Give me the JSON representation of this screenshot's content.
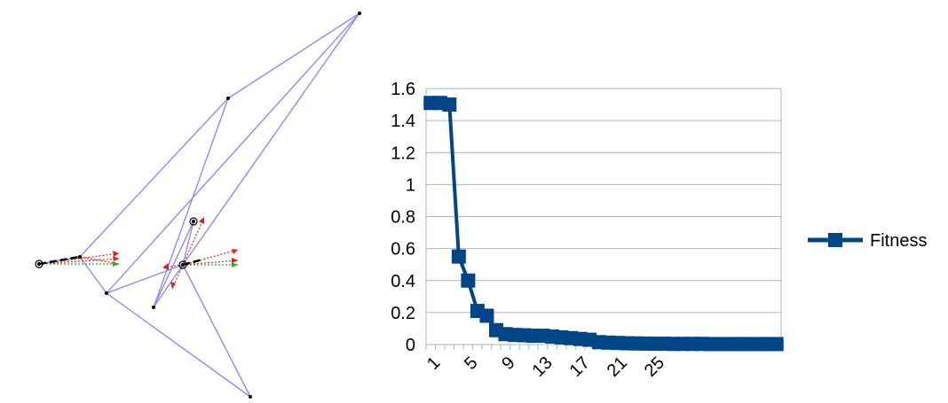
{
  "chart_data": {
    "type": "line",
    "title": "",
    "xlabel": "",
    "ylabel": "",
    "categories": [
      1,
      2,
      3,
      4,
      5,
      6,
      7,
      8,
      9,
      10,
      11,
      12,
      13,
      14,
      15,
      16,
      17,
      18,
      19,
      20,
      21,
      22,
      23,
      24,
      25,
      26,
      27,
      28,
      29,
      30,
      31,
      32,
      33,
      34,
      35,
      36,
      37,
      38
    ],
    "x_tick_labels": [
      "1",
      "5",
      "9",
      "13",
      "17",
      "21",
      "25"
    ],
    "y_tick_labels": [
      "0",
      "0.2",
      "0.4",
      "0.6",
      "0.8",
      "1",
      "1.2",
      "1.4",
      "1.6"
    ],
    "ylim": [
      0,
      1.6
    ],
    "grid": true,
    "legend_position": "right",
    "series": [
      {
        "name": "Fitness",
        "color": "#004586",
        "marker": "square",
        "values": [
          1.51,
          1.51,
          1.5,
          0.55,
          0.4,
          0.21,
          0.18,
          0.09,
          0.065,
          0.06,
          0.058,
          0.055,
          0.055,
          0.05,
          0.045,
          0.04,
          0.035,
          0.03,
          0.015,
          0.012,
          0.01,
          0.008,
          0.007,
          0.006,
          0.005,
          0.005,
          0.004,
          0.004,
          0.004,
          0.004,
          0.003,
          0.003,
          0.003,
          0.003,
          0.003,
          0.003,
          0.003,
          0.003
        ]
      }
    ]
  },
  "figure": {
    "colors": {
      "links": "#8c8cf0",
      "force_red": "#e02020",
      "force_green": "#20b020",
      "crank": "#000000"
    }
  }
}
